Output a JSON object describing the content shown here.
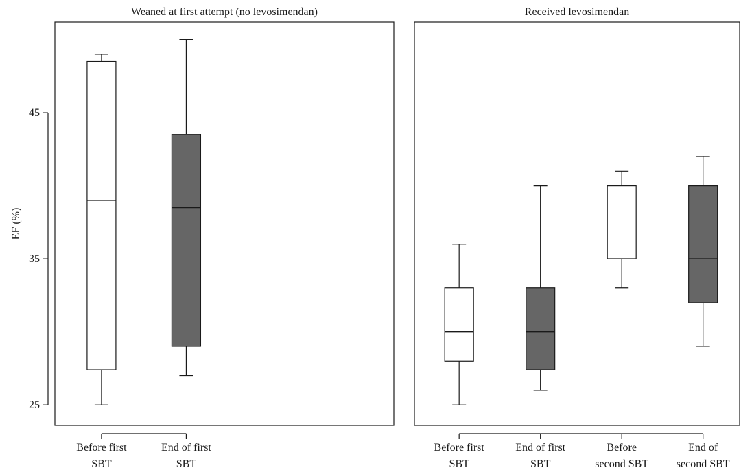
{
  "chart_data": [
    {
      "type": "box",
      "title": "Weaned at first attempt (no levosimendan)",
      "ylabel": "EF (%)",
      "ylim": [
        23.6,
        51.2
      ],
      "yticks": [
        25,
        35,
        45
      ],
      "xlim": [
        0.45,
        4.45
      ],
      "categories": [
        {
          "line1": "Before first",
          "line2": "SBT"
        },
        {
          "line1": "End of first",
          "line2": "SBT"
        }
      ],
      "boxes": [
        {
          "x": 1,
          "min": 25.0,
          "q1": 27.4,
          "median": 39.0,
          "q3": 48.5,
          "max": 49.0,
          "fill": "#ffffff"
        },
        {
          "x": 2,
          "min": 27.0,
          "q1": 29.0,
          "median": 38.5,
          "q3": 43.5,
          "max": 50.0,
          "fill": "#666666"
        }
      ]
    },
    {
      "type": "box",
      "title": "Received levosimendan",
      "ylim": [
        23.6,
        51.2
      ],
      "xlim": [
        0.45,
        4.45
      ],
      "categories": [
        {
          "line1": "Before first",
          "line2": "SBT"
        },
        {
          "line1": "End of first",
          "line2": "SBT"
        },
        {
          "line1": "Before",
          "line2": "second SBT"
        },
        {
          "line1": "End of",
          "line2": "second SBT"
        }
      ],
      "boxes": [
        {
          "x": 1,
          "min": 25.0,
          "q1": 28.0,
          "median": 30.0,
          "q3": 33.0,
          "max": 36.0,
          "fill": "#ffffff"
        },
        {
          "x": 2,
          "min": 26.0,
          "q1": 27.4,
          "median": 30.0,
          "q3": 33.0,
          "max": 40.0,
          "fill": "#666666"
        },
        {
          "x": 3,
          "min": 33.0,
          "q1": 35.0,
          "median": 35.0,
          "q3": 40.0,
          "max": 41.0,
          "fill": "#ffffff"
        },
        {
          "x": 4,
          "min": 29.0,
          "q1": 32.0,
          "median": 35.0,
          "q3": 40.0,
          "max": 42.0,
          "fill": "#666666"
        }
      ]
    }
  ]
}
